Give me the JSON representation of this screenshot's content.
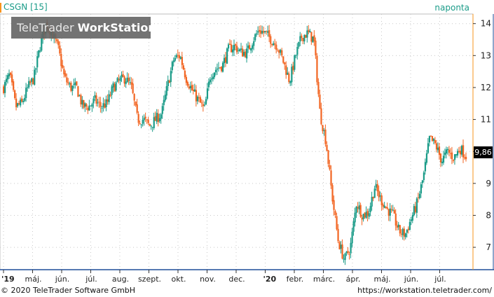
{
  "header": {
    "symbol": "CSGN [15]",
    "period": "naponta"
  },
  "watermark": {
    "brand": "TeleTrader",
    "product": "WorkStation"
  },
  "footer": {
    "copyright": "© 2020 TeleTrader Software GmbH",
    "url": "https://workstation.teletrader.com/"
  },
  "last_price_tag": "9,86",
  "colors": {
    "up": "#1a9b88",
    "down": "#f26522",
    "accent": "#f7941d",
    "axis_border": "#1f4e99",
    "grid": "#c8c8c8"
  },
  "chart_data": {
    "type": "candlestick",
    "title": "CSGN [15]",
    "interval": "naponta",
    "ylim": [
      6.3,
      14.3
    ],
    "y_ticks": [
      7,
      8,
      9,
      10,
      11,
      12,
      13,
      14
    ],
    "y_tick_labels": [
      "7",
      "8",
      "9",
      "",
      "11",
      "12",
      "13",
      "14"
    ],
    "x_ticks": [
      "'19",
      "máj.",
      "jún.",
      "júl.",
      "aug.",
      "szept.",
      "okt.",
      "nov.",
      "dec.",
      "'20",
      "febr.",
      "márc.",
      "ápr.",
      "máj.",
      "jún.",
      "júl."
    ],
    "x_tick_month_index": [
      3,
      4,
      5,
      6,
      7,
      8,
      9,
      10,
      11,
      12,
      13,
      14,
      15,
      16,
      17,
      18
    ],
    "last_value": 9.86,
    "grid": true,
    "closes": [
      12.0,
      12.4,
      11.4,
      11.5,
      12.0,
      12.3,
      13.3,
      14.0,
      13.7,
      13.2,
      12.3,
      12.0,
      12.0,
      11.4,
      11.4,
      11.6,
      11.4,
      11.5,
      12.0,
      12.2,
      12.3,
      12.0,
      11.0,
      11.0,
      10.8,
      11.0,
      11.2,
      12.1,
      12.9,
      13.0,
      12.3,
      11.9,
      11.6,
      11.3,
      12.4,
      12.6,
      12.7,
      13.2,
      13.3,
      13.1,
      13.1,
      13.5,
      13.8,
      13.7,
      13.5,
      13.3,
      12.8,
      12.2,
      13.0,
      13.6,
      13.7,
      13.5,
      11.2,
      10.3,
      8.6,
      7.2,
      6.6,
      7.0,
      8.4,
      8.0,
      8.1,
      8.9,
      8.5,
      8.2,
      8.0,
      7.5,
      7.4,
      7.9,
      8.4,
      9.2,
      10.4,
      10.2,
      9.7,
      10.0,
      9.8,
      10.1,
      9.86
    ]
  }
}
